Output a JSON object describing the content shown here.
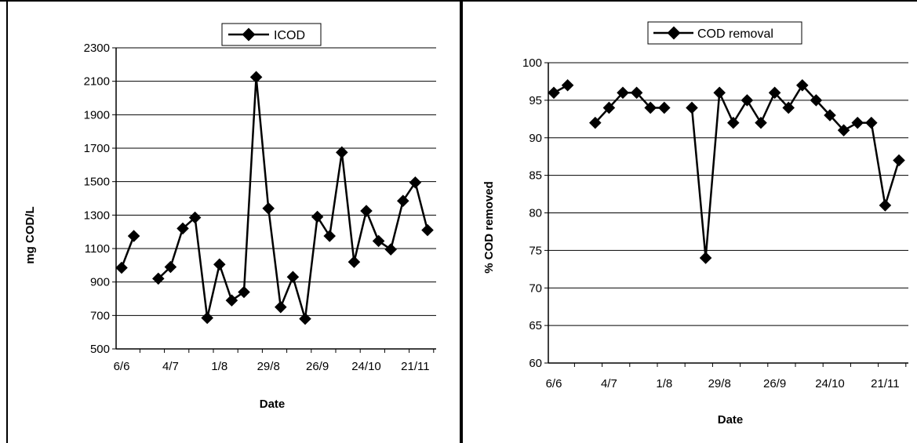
{
  "charts": [
    {
      "legend": {
        "label": "ICOD"
      },
      "ylabel": "mg COD/L",
      "xlabel": "Date",
      "yticks": [
        "500",
        "700",
        "900",
        "1100",
        "1300",
        "1500",
        "1700",
        "1900",
        "2100",
        "2300"
      ],
      "xticks": [
        "6/6",
        "4/7",
        "1/8",
        "29/8",
        "26/9",
        "24/10",
        "21/11"
      ]
    },
    {
      "legend": {
        "label": "COD removal"
      },
      "ylabel": "% COD removed",
      "xlabel": "Date",
      "yticks": [
        "60",
        "65",
        "70",
        "75",
        "80",
        "85",
        "90",
        "95",
        "100"
      ],
      "xticks": [
        "6/6",
        "4/7",
        "1/8",
        "29/8",
        "26/9",
        "24/10",
        "21/11"
      ]
    }
  ],
  "chart_data": [
    {
      "type": "line",
      "series_color": "#000000",
      "xlabel": "Date",
      "ylabel": "mg COD/L",
      "ylim": [
        500,
        2300
      ],
      "grid": true,
      "legend_position": "top-center",
      "x_ticks": [
        "6/6",
        "4/7",
        "1/8",
        "29/8",
        "26/9",
        "24/10",
        "21/11"
      ],
      "series": [
        {
          "name": "ICOD",
          "points": [
            [
              0,
              985
            ],
            [
              1,
              1175
            ],
            [
              3,
              920
            ],
            [
              4,
              990
            ],
            [
              5,
              1220
            ],
            [
              6,
              1285
            ],
            [
              7,
              685
            ],
            [
              8,
              1005
            ],
            [
              9,
              790
            ],
            [
              10,
              840
            ],
            [
              11,
              2125
            ],
            [
              12,
              1340
            ],
            [
              13,
              750
            ],
            [
              14,
              930
            ],
            [
              15,
              680
            ],
            [
              16,
              1290
            ],
            [
              17,
              1175
            ],
            [
              18,
              1675
            ],
            [
              19,
              1020
            ],
            [
              20,
              1325
            ],
            [
              21,
              1145
            ],
            [
              22,
              1095
            ],
            [
              23,
              1385
            ],
            [
              24,
              1495
            ],
            [
              25,
              1210
            ]
          ]
        }
      ]
    },
    {
      "type": "line",
      "series_color": "#000000",
      "xlabel": "Date",
      "ylabel": "% COD removed",
      "ylim": [
        60,
        100
      ],
      "grid": true,
      "legend_position": "top-center",
      "x_ticks": [
        "6/6",
        "4/7",
        "1/8",
        "29/8",
        "26/9",
        "24/10",
        "21/11"
      ],
      "series": [
        {
          "name": "COD removal",
          "segments": [
            [
              [
                0,
                96
              ],
              [
                1,
                97
              ]
            ],
            [
              [
                3,
                92
              ],
              [
                4,
                94
              ],
              [
                5,
                96
              ],
              [
                6,
                96
              ],
              [
                7,
                94
              ],
              [
                8,
                94
              ]
            ],
            [
              [
                10,
                94
              ],
              [
                11,
                74
              ],
              [
                12,
                96
              ],
              [
                13,
                92
              ],
              [
                14,
                95
              ],
              [
                15,
                92
              ],
              [
                16,
                96
              ],
              [
                17,
                94
              ],
              [
                18,
                97
              ],
              [
                19,
                95
              ],
              [
                20,
                93
              ],
              [
                21,
                91
              ],
              [
                22,
                92
              ],
              [
                23,
                92
              ],
              [
                24,
                81
              ],
              [
                25,
                87
              ]
            ]
          ]
        }
      ]
    }
  ]
}
